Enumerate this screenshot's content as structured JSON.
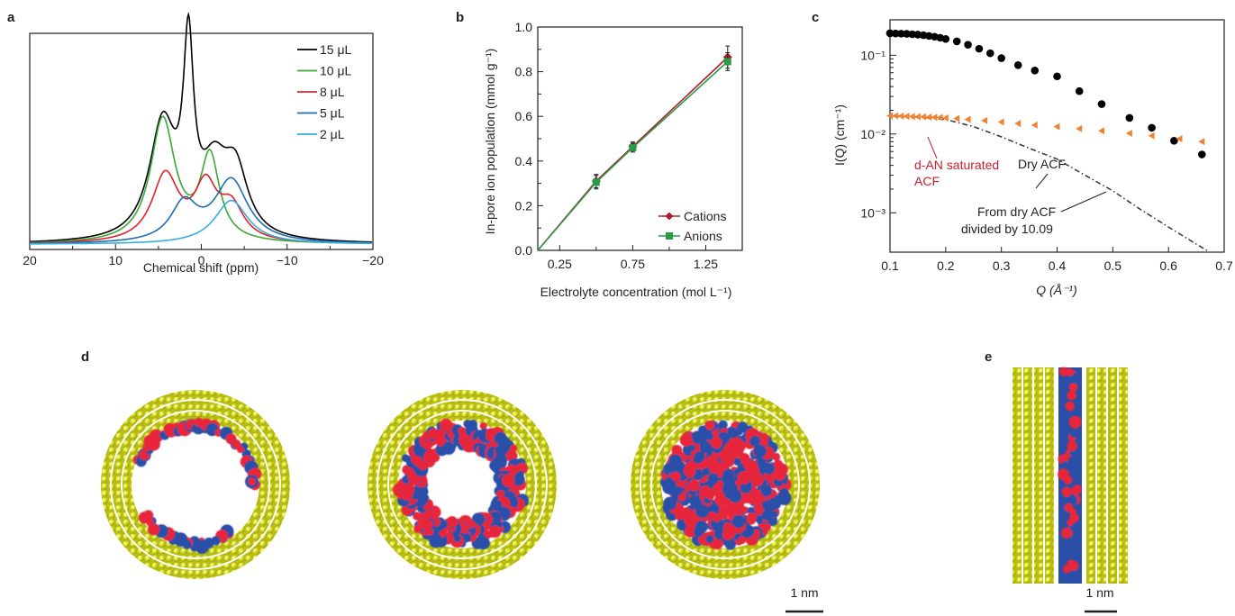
{
  "panel_labels": {
    "a": "a",
    "b": "b",
    "c": "c",
    "d": "d",
    "e": "e"
  },
  "chart_data": [
    {
      "type": "line",
      "panel": "a",
      "xlabel": "Chemical shift (ppm)",
      "ylabel": "",
      "xlim": [
        20,
        -20
      ],
      "xticks": [
        "20",
        "10",
        "0",
        "−10",
        "−20"
      ],
      "legend_position": "top-right",
      "series": [
        {
          "name": "15 μL",
          "color": "#000000",
          "peaks": [
            {
              "c": 4.5,
              "w": 2.4,
              "h": 0.55
            },
            {
              "c": 1.5,
              "w": 0.9,
              "h": 0.83
            },
            {
              "c": -1.5,
              "w": 2.4,
              "h": 0.3
            },
            {
              "c": -4,
              "w": 2.2,
              "h": 0.3
            }
          ]
        },
        {
          "name": "10 μL",
          "color": "#3aa935",
          "peaks": [
            {
              "c": 4.5,
              "w": 2.2,
              "h": 0.59
            },
            {
              "c": -1.0,
              "w": 1.7,
              "h": 0.4
            }
          ]
        },
        {
          "name": "8 μL",
          "color": "#e3202b",
          "peaks": [
            {
              "c": 4.2,
              "w": 2.4,
              "h": 0.32
            },
            {
              "c": -0.5,
              "w": 2.0,
              "h": 0.25
            },
            {
              "c": -3.5,
              "w": 2.2,
              "h": 0.16
            }
          ]
        },
        {
          "name": "5 μL",
          "color": "#1f6db2",
          "peaks": [
            {
              "c": 2.0,
              "w": 2.4,
              "h": 0.18
            },
            {
              "c": -3.5,
              "w": 3.0,
              "h": 0.3
            }
          ]
        },
        {
          "name": "2 μL",
          "color": "#36aedd",
          "peaks": [
            {
              "c": -3.5,
              "w": 3.0,
              "h": 0.21
            }
          ]
        }
      ]
    },
    {
      "type": "line",
      "panel": "b",
      "xlabel": "Electrolyte concentration (mol L⁻¹)",
      "ylabel": "In-pore ion population (mmol g⁻¹)",
      "xlim": [
        0.1,
        1.5
      ],
      "ylim": [
        0,
        1.0
      ],
      "xticks": [
        "0.25",
        "0.75",
        "1.25"
      ],
      "yticks": [
        "0.0",
        "0.2",
        "0.4",
        "0.6",
        "0.8",
        "1.0"
      ],
      "legend_position": "bottom-right",
      "series": [
        {
          "name": "Cations",
          "color": "#b01c2f",
          "marker": "diamond",
          "x": [
            0.1,
            0.5,
            0.75,
            1.4
          ],
          "y": [
            0.0,
            0.31,
            0.465,
            0.865
          ],
          "err": [
            0,
            0.03,
            0.02,
            0.05
          ]
        },
        {
          "name": "Anions",
          "color": "#2a9b45",
          "marker": "square",
          "x": [
            0.1,
            0.5,
            0.75,
            1.4
          ],
          "y": [
            0.0,
            0.305,
            0.46,
            0.845
          ],
          "err": [
            0,
            0.03,
            0.02,
            0.04
          ]
        }
      ]
    },
    {
      "type": "scatter",
      "panel": "c",
      "xlabel": "Q (Å⁻¹)",
      "ylabel": "I(Q) (cm⁻¹)",
      "xlim": [
        0.1,
        0.7
      ],
      "ylim_log10": [
        -3.5,
        -0.55
      ],
      "yscale": "log",
      "xticks": [
        "0.1",
        "0.2",
        "0.3",
        "0.4",
        "0.5",
        "0.6",
        "0.7"
      ],
      "yticks": [
        "10⁻¹",
        "10⁻²",
        "10⁻³"
      ],
      "series": [
        {
          "name": "Dry ACF",
          "color": "#000000",
          "marker": "circle",
          "x": [
            0.1,
            0.11,
            0.12,
            0.13,
            0.14,
            0.15,
            0.16,
            0.17,
            0.18,
            0.19,
            0.2,
            0.22,
            0.24,
            0.26,
            0.28,
            0.3,
            0.33,
            0.36,
            0.4,
            0.44,
            0.48,
            0.53,
            0.57,
            0.61,
            0.66
          ],
          "y": [
            0.19,
            0.189,
            0.188,
            0.187,
            0.185,
            0.183,
            0.18,
            0.176,
            0.172,
            0.167,
            0.161,
            0.15,
            0.136,
            0.121,
            0.106,
            0.092,
            0.075,
            0.064,
            0.054,
            0.035,
            0.024,
            0.016,
            0.012,
            0.0082,
            0.0055
          ]
        },
        {
          "name": "d-AN saturated ACF",
          "color": "#f08234",
          "marker": "triangle-left",
          "x": [
            0.1,
            0.11,
            0.12,
            0.13,
            0.14,
            0.15,
            0.16,
            0.17,
            0.18,
            0.19,
            0.2,
            0.22,
            0.24,
            0.27,
            0.3,
            0.33,
            0.36,
            0.4,
            0.44,
            0.48,
            0.53,
            0.57,
            0.62,
            0.66
          ],
          "y": [
            0.017,
            0.017,
            0.0169,
            0.0168,
            0.0167,
            0.0166,
            0.0165,
            0.0164,
            0.0163,
            0.0162,
            0.016,
            0.0157,
            0.0153,
            0.0148,
            0.0142,
            0.0136,
            0.013,
            0.0124,
            0.0117,
            0.011,
            0.0102,
            0.0095,
            0.0087,
            0.008
          ]
        },
        {
          "name": "From dry ACF divided by 10.09",
          "color": "#333333",
          "style": "dash-dot",
          "x": [
            0.1,
            0.15,
            0.2,
            0.25,
            0.3,
            0.35,
            0.4,
            0.45,
            0.5,
            0.55,
            0.6,
            0.65,
            0.67
          ],
          "y": [
            0.017,
            0.0164,
            0.0153,
            0.0124,
            0.0092,
            0.0066,
            0.0048,
            0.003,
            0.0019,
            0.0011,
            0.00066,
            0.0004,
            0.00033
          ]
        }
      ],
      "annotations": [
        "Dry ACF",
        "d-AN saturated ACF",
        "From dry ACF divided by 10.09"
      ]
    }
  ],
  "images": {
    "scale_d": "1 nm",
    "scale_e": "1 nm",
    "colors": {
      "carbon": "#d9e021",
      "cation": "#e8283a",
      "anion": "#2b4fa8"
    }
  }
}
